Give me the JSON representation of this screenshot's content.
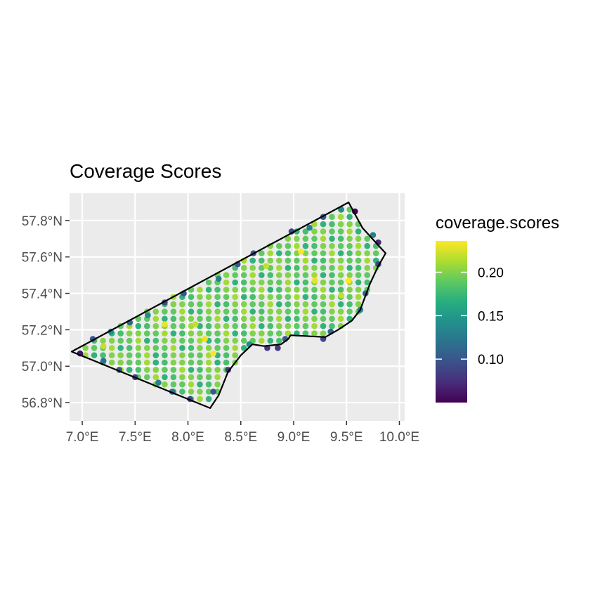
{
  "chart_data": {
    "type": "scatter",
    "title": "Coverage Scores",
    "xlabel": "",
    "ylabel": "",
    "x_ticks": [
      "7.0°E",
      "7.5°E",
      "8.0°E",
      "8.5°E",
      "9.0°E",
      "9.5°E",
      "10.0°E"
    ],
    "y_ticks": [
      "56.8°N",
      "57.0°N",
      "57.2°N",
      "57.4°N",
      "57.6°N",
      "57.8°N"
    ],
    "x_tick_values": [
      7.0,
      7.5,
      8.0,
      8.5,
      9.0,
      9.5,
      10.0
    ],
    "y_tick_values": [
      56.8,
      57.0,
      57.2,
      57.4,
      57.6,
      57.8
    ],
    "xlim": [
      6.88,
      10.05
    ],
    "ylim": [
      56.7,
      57.95
    ],
    "grid": true,
    "panel_background": "#ebebeb",
    "grid_color": "#ffffff",
    "boundary_color": "#000000",
    "colormap": "viridis",
    "boundary": [
      [
        6.9,
        57.08
      ],
      [
        9.52,
        57.9
      ],
      [
        9.65,
        57.76
      ],
      [
        9.87,
        57.62
      ],
      [
        9.8,
        57.55
      ],
      [
        9.72,
        57.45
      ],
      [
        9.63,
        57.31
      ],
      [
        9.55,
        57.25
      ],
      [
        9.42,
        57.2
      ],
      [
        9.3,
        57.16
      ],
      [
        8.97,
        57.17
      ],
      [
        8.95,
        57.15
      ],
      [
        8.88,
        57.12
      ],
      [
        8.72,
        57.11
      ],
      [
        8.61,
        57.12
      ],
      [
        8.5,
        57.06
      ],
      [
        8.38,
        56.97
      ],
      [
        8.29,
        56.84
      ],
      [
        8.21,
        56.77
      ],
      [
        6.9,
        57.08
      ]
    ],
    "grid_spacing": {
      "dlon": 0.0833,
      "dlat": 0.04
    },
    "fill_score": 0.19,
    "edge_points": [
      {
        "lon": 6.98,
        "lat": 57.07,
        "score": 0.06
      },
      {
        "lon": 7.1,
        "lat": 57.15,
        "score": 0.1
      },
      {
        "lon": 7.2,
        "lat": 57.03,
        "score": 0.12
      },
      {
        "lon": 7.27,
        "lat": 57.19,
        "score": 0.14
      },
      {
        "lon": 7.35,
        "lat": 56.98,
        "score": 0.1
      },
      {
        "lon": 7.45,
        "lat": 57.24,
        "score": 0.11
      },
      {
        "lon": 7.5,
        "lat": 56.94,
        "score": 0.09
      },
      {
        "lon": 7.62,
        "lat": 57.28,
        "score": 0.14
      },
      {
        "lon": 7.72,
        "lat": 56.91,
        "score": 0.13
      },
      {
        "lon": 7.78,
        "lat": 57.35,
        "score": 0.09
      },
      {
        "lon": 7.85,
        "lat": 56.86,
        "score": 0.12
      },
      {
        "lon": 7.96,
        "lat": 57.4,
        "score": 0.1
      },
      {
        "lon": 8.02,
        "lat": 56.82,
        "score": 0.09
      },
      {
        "lon": 8.24,
        "lat": 56.86,
        "score": 0.1
      },
      {
        "lon": 8.29,
        "lat": 57.48,
        "score": 0.13
      },
      {
        "lon": 8.38,
        "lat": 56.98,
        "score": 0.08
      },
      {
        "lon": 8.47,
        "lat": 57.56,
        "score": 0.1
      },
      {
        "lon": 8.58,
        "lat": 57.12,
        "score": 0.14
      },
      {
        "lon": 8.62,
        "lat": 57.62,
        "score": 0.1
      },
      {
        "lon": 8.75,
        "lat": 57.1,
        "score": 0.08
      },
      {
        "lon": 8.85,
        "lat": 57.1,
        "score": 0.08
      },
      {
        "lon": 8.92,
        "lat": 57.15,
        "score": 0.1
      },
      {
        "lon": 8.98,
        "lat": 57.74,
        "score": 0.09
      },
      {
        "lon": 9.15,
        "lat": 57.76,
        "score": 0.13
      },
      {
        "lon": 9.28,
        "lat": 57.15,
        "score": 0.09
      },
      {
        "lon": 9.28,
        "lat": 57.82,
        "score": 0.1
      },
      {
        "lon": 9.35,
        "lat": 57.19,
        "score": 0.11
      },
      {
        "lon": 9.45,
        "lat": 57.86,
        "score": 0.14
      },
      {
        "lon": 9.58,
        "lat": 57.85,
        "score": 0.05
      },
      {
        "lon": 9.63,
        "lat": 57.31,
        "score": 0.13
      },
      {
        "lon": 9.68,
        "lat": 57.4,
        "score": 0.11
      },
      {
        "lon": 9.75,
        "lat": 57.72,
        "score": 0.13
      },
      {
        "lon": 9.8,
        "lat": 57.68,
        "score": 0.07
      },
      {
        "lon": 9.8,
        "lat": 57.56,
        "score": 0.09
      }
    ],
    "highlight_points": [
      {
        "lon": 7.2,
        "lat": 57.11,
        "score": 0.22
      },
      {
        "lon": 7.78,
        "lat": 57.23,
        "score": 0.23
      },
      {
        "lon": 8.07,
        "lat": 57.23,
        "score": 0.22
      },
      {
        "lon": 8.24,
        "lat": 57.07,
        "score": 0.24
      },
      {
        "lon": 8.16,
        "lat": 57.15,
        "score": 0.23
      },
      {
        "lon": 8.74,
        "lat": 57.55,
        "score": 0.22
      },
      {
        "lon": 9.07,
        "lat": 57.63,
        "score": 0.24
      },
      {
        "lon": 9.2,
        "lat": 57.47,
        "score": 0.23
      },
      {
        "lon": 9.52,
        "lat": 57.47,
        "score": 0.24
      },
      {
        "lon": 9.45,
        "lat": 57.39,
        "score": 0.22
      }
    ],
    "legend": {
      "title": "coverage.scores",
      "position": "right",
      "labels": [
        "0.10",
        "0.15",
        "0.20"
      ],
      "values": [
        0.1,
        0.15,
        0.2
      ],
      "range": [
        0.05,
        0.236
      ]
    }
  }
}
